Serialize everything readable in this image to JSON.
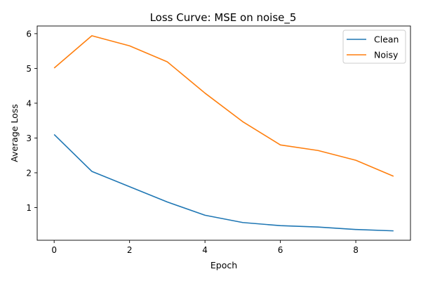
{
  "chart_data": {
    "type": "line",
    "title": "Loss Curve: MSE on noise_5",
    "xlabel": "Epoch",
    "ylabel": "Average Loss",
    "x": [
      0,
      1,
      2,
      3,
      4,
      5,
      6,
      7,
      8,
      9
    ],
    "xlim": [
      -0.45,
      9.45
    ],
    "ylim": [
      0.06,
      6.22
    ],
    "xticks": [
      0,
      2,
      4,
      6,
      8
    ],
    "yticks": [
      1,
      2,
      3,
      4,
      5,
      6
    ],
    "grid": false,
    "legend_position": "top-right",
    "series": [
      {
        "name": "Clean",
        "color": "#1f77b4",
        "values": [
          3.1,
          2.04,
          1.6,
          1.16,
          0.78,
          0.57,
          0.48,
          0.44,
          0.37,
          0.33
        ]
      },
      {
        "name": "Noisy",
        "color": "#ff7f0e",
        "values": [
          5.01,
          5.94,
          5.65,
          5.19,
          4.29,
          3.47,
          2.8,
          2.64,
          2.36,
          1.9
        ]
      }
    ]
  }
}
